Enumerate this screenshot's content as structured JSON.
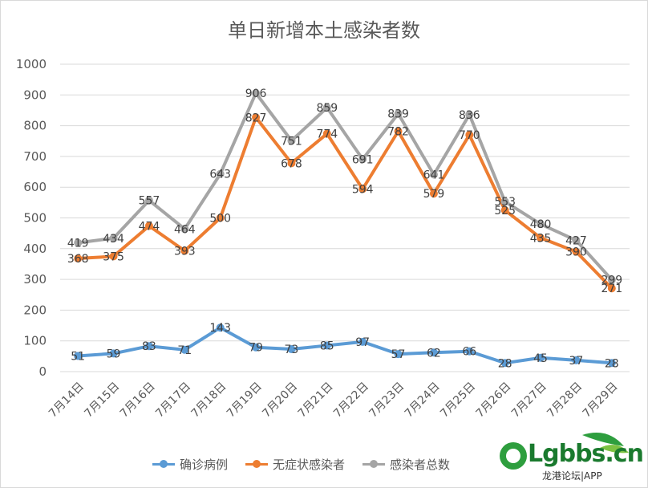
{
  "colors": {
    "confirmed": "#5b9bd5",
    "asymptomatic": "#ed7d31",
    "total": "#a5a5a5",
    "grid": "#d9d9d9",
    "axis_text": "#595959"
  },
  "watermark": {
    "logo": "Lgbbs.cn",
    "subtitle": "龙港论坛|APP"
  },
  "chart_data": {
    "type": "line",
    "title": "单日新增本土感染者数",
    "categories": [
      "7月14日",
      "7月15日",
      "7月16日",
      "7月17日",
      "7月18日",
      "7月19日",
      "7月20日",
      "7月21日",
      "7月22日",
      "7月23日",
      "7月24日",
      "7月25日",
      "7月26日",
      "7月27日",
      "7月28日",
      "7月29日"
    ],
    "ylim": [
      0,
      1000
    ],
    "yticks": [
      0,
      100,
      200,
      300,
      400,
      500,
      600,
      700,
      800,
      900,
      1000
    ],
    "grid": true,
    "legend_position": "bottom",
    "series": [
      {
        "key": "confirmed",
        "name": "确诊病例",
        "values": [
          51,
          59,
          83,
          71,
          143,
          79,
          73,
          85,
          97,
          57,
          62,
          66,
          28,
          45,
          37,
          28
        ]
      },
      {
        "key": "asymptomatic",
        "name": "无症状感染者",
        "values": [
          368,
          375,
          474,
          393,
          500,
          827,
          678,
          774,
          594,
          782,
          579,
          770,
          525,
          435,
          390,
          271
        ]
      },
      {
        "key": "total",
        "name": "感染者总数",
        "values": [
          419,
          434,
          557,
          464,
          643,
          906,
          751,
          859,
          691,
          839,
          641,
          836,
          553,
          480,
          427,
          299
        ]
      }
    ]
  }
}
